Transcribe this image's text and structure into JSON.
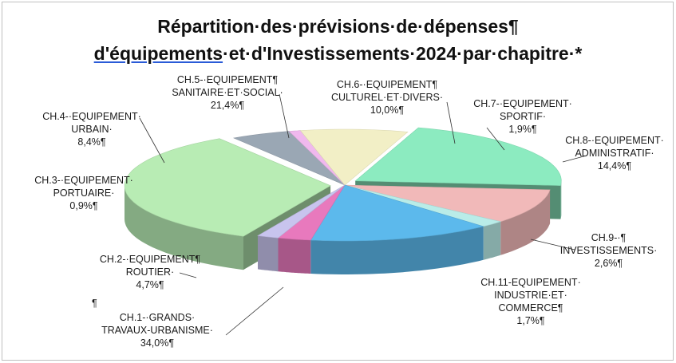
{
  "chart_data": {
    "type": "pie",
    "title_line1": "Répartition·des·prévisions·de·dépenses¶",
    "title_line2_underlined": "d'équipements",
    "title_line2_rest": "·et·d'Investissements·2024·par·chapitre·*",
    "slices": [
      {
        "label_lines": [
          "CH.1-·GRANDS·",
          "TRAVAUX-URBANISME·",
          "34,0%¶"
        ],
        "value": 34.0,
        "color": "#b8ecb4"
      },
      {
        "label_lines": [
          "CH.2-·EQUIPEMENT¶",
          "ROUTIER·",
          "4,7%¶"
        ],
        "value": 4.7,
        "color": "#9aa7b4"
      },
      {
        "label_lines": [
          "CH.3-·EQUIPEMENT·",
          "PORTUAIRE·",
          "0,9%¶"
        ],
        "value": 0.9,
        "color": "#f0b8ee"
      },
      {
        "label_lines": [
          "CH.4-·EQUIPEMENT·",
          "URBAIN·",
          "8,4%¶"
        ],
        "value": 8.4,
        "color": "#f2efc6"
      },
      {
        "label_lines": [
          "CH.5-·EQUIPEMENT¶",
          "SANITAIRE·ET·SOCIAL·",
          "21,4%¶"
        ],
        "value": 21.4,
        "color": "#8cebc0"
      },
      {
        "label_lines": [
          "CH.6-·EQUIPEMENT¶",
          "CULTUREL·ET·DIVERS·",
          "10,0%¶"
        ],
        "value": 10.0,
        "color": "#f1b9b9"
      },
      {
        "label_lines": [
          "CH.7-·EQUIPEMENT·",
          "SPORTIF·",
          "1,9%¶"
        ],
        "value": 1.9,
        "color": "#b9ece8"
      },
      {
        "label_lines": [
          "CH.8-·EQUIPEMENT·",
          "ADMINISTRATIF·",
          "14,4%¶"
        ],
        "value": 14.4,
        "color": "#5cb9ec"
      },
      {
        "label_lines": [
          "CH.9-·¶",
          "INVESTISSEMENTS·",
          "2,6%¶"
        ],
        "value": 2.6,
        "color": "#e879bd"
      },
      {
        "label_lines": [
          "CH.11-EQUIPEMENT·",
          "INDUSTRIE·ET·",
          "COMMERCE¶",
          "1,7%¶"
        ],
        "value": 1.7,
        "color": "#c8c4ee"
      }
    ],
    "stray_mark": "¶",
    "legend": "none"
  }
}
